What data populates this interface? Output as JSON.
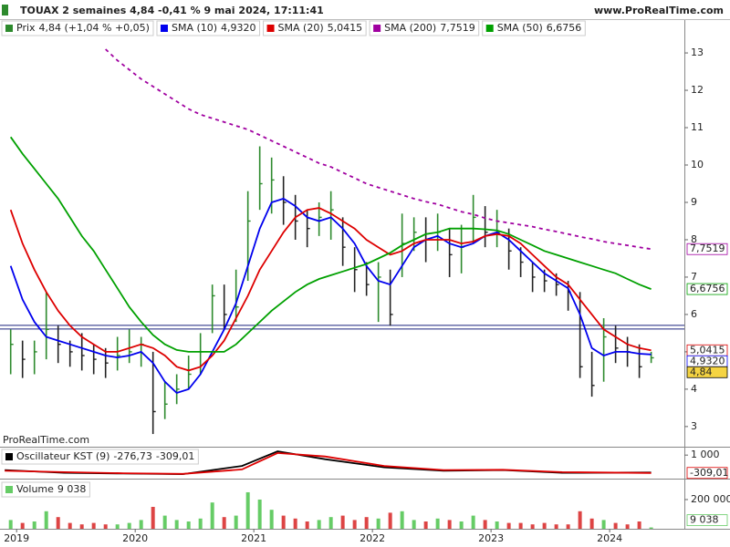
{
  "header": {
    "title": "TOUAX 2 semaines 4,84 -0,41 % 9 mai 2024, 17:11:41",
    "site": "www.ProRealTime.com",
    "watermark": "ProRealTime.com"
  },
  "chart_data": [
    {
      "type": "ohlc",
      "name": "Prix",
      "legend_value": "4,84 (+1,04 % +0,05)",
      "last_label": "4,84",
      "up_color": "#2d8a2d",
      "down_color": "#222222",
      "x": [
        2018.95,
        2019.05,
        2019.15,
        2019.25,
        2019.35,
        2019.45,
        2019.55,
        2019.65,
        2019.75,
        2019.85,
        2019.95,
        2020.05,
        2020.15,
        2020.25,
        2020.35,
        2020.45,
        2020.55,
        2020.65,
        2020.75,
        2020.85,
        2020.95,
        2021.05,
        2021.15,
        2021.25,
        2021.35,
        2021.45,
        2021.55,
        2021.65,
        2021.75,
        2021.85,
        2021.95,
        2022.05,
        2022.15,
        2022.25,
        2022.35,
        2022.45,
        2022.55,
        2022.65,
        2022.75,
        2022.85,
        2022.95,
        2023.05,
        2023.15,
        2023.25,
        2023.35,
        2023.45,
        2023.55,
        2023.65,
        2023.75,
        2023.85,
        2023.95,
        2024.05,
        2024.15,
        2024.25,
        2024.35
      ],
      "high": [
        5.6,
        5.3,
        5.3,
        6.6,
        5.7,
        5.3,
        5.5,
        5.2,
        5.1,
        5.4,
        5.6,
        5.4,
        5.0,
        4.2,
        4.4,
        4.9,
        5.5,
        6.8,
        6.8,
        7.2,
        9.3,
        10.5,
        10.2,
        9.7,
        9.2,
        8.8,
        9.0,
        9.3,
        8.6,
        7.8,
        7.4,
        7.4,
        7.2,
        8.7,
        8.6,
        8.6,
        8.7,
        8.3,
        8.4,
        9.2,
        8.9,
        8.8,
        8.3,
        7.8,
        7.4,
        7.2,
        7.1,
        6.9,
        6.6,
        5.0,
        5.9,
        5.7,
        5.4,
        5.2,
        5.0
      ],
      "low": [
        4.4,
        4.3,
        4.4,
        4.8,
        4.7,
        4.6,
        4.5,
        4.4,
        4.3,
        4.5,
        4.7,
        4.6,
        2.8,
        3.2,
        3.6,
        4.0,
        4.4,
        5.5,
        5.6,
        5.8,
        6.9,
        8.8,
        8.7,
        8.4,
        8.0,
        7.8,
        8.1,
        8.0,
        7.3,
        6.6,
        6.5,
        5.8,
        5.7,
        7.0,
        7.7,
        7.4,
        7.7,
        7.0,
        7.1,
        7.9,
        7.8,
        7.8,
        7.2,
        7.0,
        6.6,
        6.6,
        6.5,
        6.1,
        4.3,
        3.8,
        4.2,
        4.7,
        4.6,
        4.3,
        4.7
      ],
      "close": [
        5.2,
        4.8,
        5.0,
        5.6,
        5.2,
        5.0,
        4.9,
        4.8,
        4.7,
        4.9,
        5.0,
        5.2,
        3.4,
        3.6,
        4.0,
        4.4,
        5.0,
        6.5,
        6.0,
        6.2,
        8.5,
        9.5,
        9.6,
        9.0,
        8.5,
        8.3,
        8.6,
        8.8,
        7.8,
        7.2,
        6.8,
        7.0,
        6.0,
        7.9,
        8.2,
        8.0,
        8.2,
        7.6,
        7.8,
        8.6,
        8.2,
        8.2,
        7.7,
        7.4,
        7.0,
        6.9,
        6.8,
        6.6,
        4.6,
        4.1,
        5.4,
        5.1,
        5.0,
        4.6,
        4.84
      ],
      "series": [
        {
          "name": "SMA (10)",
          "legend_value": "4,9320",
          "color": "#0000ee",
          "values": [
            7.3,
            6.4,
            5.8,
            5.4,
            5.3,
            5.2,
            5.1,
            5.0,
            4.9,
            4.85,
            4.9,
            5.0,
            4.7,
            4.2,
            3.9,
            4.0,
            4.4,
            5.0,
            5.6,
            6.3,
            7.3,
            8.3,
            9.0,
            9.1,
            8.9,
            8.6,
            8.5,
            8.6,
            8.3,
            7.9,
            7.3,
            6.9,
            6.8,
            7.3,
            7.8,
            8.0,
            8.1,
            7.9,
            7.8,
            7.9,
            8.1,
            8.2,
            8.0,
            7.7,
            7.4,
            7.1,
            6.9,
            6.7,
            6.0,
            5.1,
            4.9,
            5.0,
            5.0,
            4.95,
            4.93
          ]
        },
        {
          "name": "SMA (20)",
          "legend_value": "5,0415",
          "color": "#dd0000",
          "values": [
            8.8,
            7.9,
            7.2,
            6.6,
            6.1,
            5.7,
            5.4,
            5.2,
            5.0,
            5.0,
            5.1,
            5.2,
            5.1,
            4.9,
            4.6,
            4.5,
            4.6,
            4.9,
            5.3,
            5.9,
            6.5,
            7.2,
            7.7,
            8.2,
            8.6,
            8.8,
            8.85,
            8.7,
            8.5,
            8.3,
            8.0,
            7.8,
            7.6,
            7.7,
            7.9,
            8.0,
            8.0,
            8.0,
            7.9,
            7.95,
            8.1,
            8.15,
            8.1,
            7.9,
            7.6,
            7.3,
            7.0,
            6.8,
            6.4,
            6.0,
            5.6,
            5.4,
            5.2,
            5.1,
            5.04
          ]
        },
        {
          "name": "SMA (200)",
          "legend_value": "7,7519",
          "color": "#a000a0",
          "dashed": true,
          "values": [
            null,
            null,
            null,
            null,
            null,
            null,
            null,
            null,
            13.1,
            12.8,
            12.55,
            12.3,
            12.1,
            11.9,
            11.7,
            11.5,
            11.35,
            11.25,
            11.15,
            11.05,
            10.95,
            10.8,
            10.65,
            10.5,
            10.35,
            10.2,
            10.05,
            9.95,
            9.8,
            9.65,
            9.5,
            9.4,
            9.3,
            9.2,
            9.1,
            9.02,
            8.95,
            8.85,
            8.75,
            8.68,
            8.58,
            8.5,
            8.45,
            8.4,
            8.35,
            8.28,
            8.22,
            8.15,
            8.08,
            8.02,
            7.95,
            7.9,
            7.85,
            7.8,
            7.75
          ]
        },
        {
          "name": "SMA (50)",
          "legend_value": "6,6756",
          "color": "#00a000",
          "values": [
            10.75,
            10.3,
            9.9,
            9.5,
            9.1,
            8.6,
            8.1,
            7.7,
            7.2,
            6.7,
            6.2,
            5.8,
            5.45,
            5.2,
            5.05,
            5.0,
            5.0,
            5.0,
            5.0,
            5.2,
            5.5,
            5.8,
            6.1,
            6.35,
            6.6,
            6.8,
            6.95,
            7.05,
            7.15,
            7.25,
            7.35,
            7.5,
            7.65,
            7.85,
            8.0,
            8.15,
            8.2,
            8.3,
            8.3,
            8.3,
            8.28,
            8.25,
            8.15,
            8.0,
            7.85,
            7.7,
            7.6,
            7.5,
            7.4,
            7.3,
            7.2,
            7.1,
            6.95,
            6.8,
            6.68
          ]
        }
      ],
      "horizontal_line": 5.66,
      "horizontal_line_color": "#1a237e",
      "xlim": [
        2018.86,
        2024.63
      ],
      "xticks": [
        2019,
        2020,
        2021,
        2022,
        2023,
        2024
      ],
      "ylim": [
        2.46,
        13.88
      ],
      "yticks": [
        3,
        4,
        5,
        6,
        7,
        8,
        9,
        10,
        11,
        12,
        13
      ]
    },
    {
      "type": "line",
      "title": "Oscillateur KST (9)",
      "x": [
        2018.9,
        2019.4,
        2019.9,
        2020.4,
        2020.9,
        2021.2,
        2021.6,
        2022.1,
        2022.6,
        2023.1,
        2023.6,
        2024.35
      ],
      "series": [
        {
          "legend_value": "-276,73",
          "color": "#000000",
          "values": [
            -100,
            -300,
            -350,
            -400,
            200,
            1280,
            700,
            100,
            -150,
            -100,
            -300,
            -277
          ]
        },
        {
          "legend_value": "-309,01",
          "last_label": "-309,01",
          "color": "#dd0000",
          "values": [
            -150,
            -250,
            -330,
            -380,
            -50,
            1150,
            900,
            200,
            -100,
            -80,
            -250,
            -309
          ]
        }
      ],
      "ylim": [
        -660,
        1480
      ],
      "yticks": [
        {
          "value": 1000,
          "label": "1 000"
        }
      ]
    },
    {
      "type": "bar",
      "title": "Volume",
      "legend_value": "9 038",
      "last_label": "9 038",
      "up_color": "#66cc66",
      "down_color": "#dd4444",
      "values": [
        60000,
        40000,
        50000,
        120000,
        80000,
        40000,
        30000,
        40000,
        30000,
        30000,
        40000,
        60000,
        150000,
        90000,
        60000,
        50000,
        70000,
        180000,
        80000,
        90000,
        250000,
        200000,
        130000,
        90000,
        70000,
        50000,
        60000,
        80000,
        90000,
        60000,
        80000,
        70000,
        110000,
        120000,
        60000,
        50000,
        70000,
        60000,
        50000,
        90000,
        60000,
        50000,
        40000,
        40000,
        30000,
        40000,
        30000,
        30000,
        120000,
        70000,
        60000,
        40000,
        30000,
        50000,
        9038
      ],
      "ylim": [
        0,
        331000
      ],
      "yticks": [
        {
          "value": 200000,
          "label": "200 000"
        }
      ]
    }
  ]
}
